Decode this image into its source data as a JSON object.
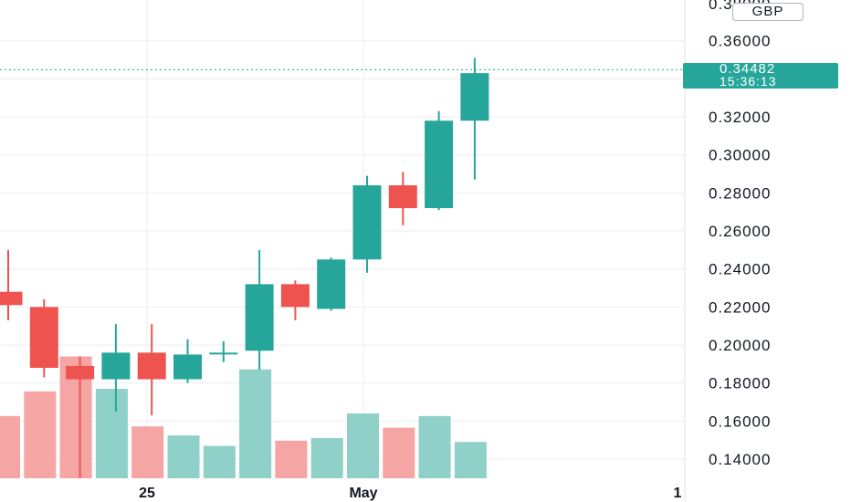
{
  "currency": "GBP",
  "last_price": "0.34482",
  "countdown": "15:36:13",
  "colors": {
    "up": "#26a69a",
    "down": "#ef5350",
    "up_volume": "#8fd0c8",
    "down_volume": "#f5a5a4",
    "grid": "#eceef2",
    "text": "#131722"
  },
  "chart_data": {
    "type": "candlestick",
    "y_ticks": [
      "0.14000",
      "0.16000",
      "0.18000",
      "0.20000",
      "0.22000",
      "0.24000",
      "0.26000",
      "0.28000",
      "0.30000",
      "0.32000",
      "0.34000",
      "0.36000"
    ],
    "x_labels": [
      "25",
      "May",
      "1"
    ],
    "ylim": [
      0.13,
      0.38
    ],
    "grid": true,
    "ohlc": [
      {
        "o": 0.228,
        "h": 0.25,
        "l": 0.213,
        "c": 0.221
      },
      {
        "o": 0.22,
        "h": 0.224,
        "l": 0.183,
        "c": 0.188
      },
      {
        "o": 0.189,
        "h": 0.194,
        "l": 0.13,
        "c": 0.182
      },
      {
        "o": 0.182,
        "h": 0.211,
        "l": 0.165,
        "c": 0.196
      },
      {
        "o": 0.196,
        "h": 0.211,
        "l": 0.163,
        "c": 0.182
      },
      {
        "o": 0.182,
        "h": 0.203,
        "l": 0.18,
        "c": 0.195
      },
      {
        "o": 0.196,
        "h": 0.202,
        "l": 0.191,
        "c": 0.196
      },
      {
        "o": 0.197,
        "h": 0.25,
        "l": 0.187,
        "c": 0.232
      },
      {
        "o": 0.232,
        "h": 0.234,
        "l": 0.213,
        "c": 0.22
      },
      {
        "o": 0.219,
        "h": 0.246,
        "l": 0.218,
        "c": 0.245
      },
      {
        "o": 0.245,
        "h": 0.289,
        "l": 0.238,
        "c": 0.284
      },
      {
        "o": 0.284,
        "h": 0.291,
        "l": 0.263,
        "c": 0.272
      },
      {
        "o": 0.272,
        "h": 0.323,
        "l": 0.271,
        "c": 0.318
      },
      {
        "o": 0.318,
        "h": 0.351,
        "l": 0.287,
        "c": 0.343
      }
    ],
    "volume_relative": [
      0.48,
      0.67,
      0.94,
      0.69,
      0.4,
      0.33,
      0.25,
      0.84,
      0.29,
      0.31,
      0.5,
      0.39,
      0.48,
      0.28
    ],
    "volume_direction": [
      "down",
      "down",
      "down",
      "up",
      "down",
      "up",
      "up",
      "up",
      "down",
      "up",
      "up",
      "down",
      "up",
      "up"
    ]
  }
}
